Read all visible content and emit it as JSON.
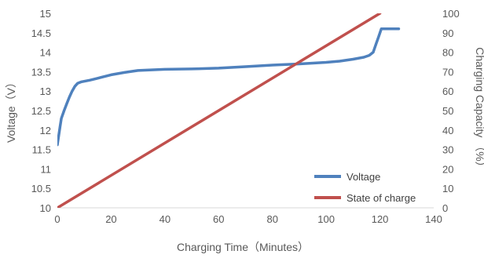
{
  "chart_data": {
    "type": "line",
    "title": "",
    "xlabel": "Charging Time（Minutes）",
    "ylabel_left": "Voltage（V）",
    "ylabel_right": "Charging Capacity （%）",
    "xlim": [
      0,
      140
    ],
    "ylim_left": [
      10,
      15
    ],
    "ylim_right": [
      0,
      100
    ],
    "x_ticks": [
      0,
      20,
      40,
      60,
      80,
      100,
      120,
      140
    ],
    "y_left_ticks": [
      10,
      10.5,
      11,
      11.5,
      12,
      12.5,
      13,
      13.5,
      14,
      14.5,
      15
    ],
    "y_left_tick_labels": [
      "10",
      "10.5",
      "11",
      "11.5",
      "12",
      "12.5",
      "13",
      "13.5",
      "14",
      "14.5",
      "15"
    ],
    "y_right_ticks": [
      0,
      10,
      20,
      30,
      40,
      50,
      60,
      70,
      80,
      90,
      100
    ],
    "grid": false,
    "legend_position": "bottom-right",
    "series": [
      {
        "name": "Voltage",
        "axis": "left",
        "color": "#4F81BD",
        "points": [
          [
            0,
            11.62
          ],
          [
            0.5,
            11.85
          ],
          [
            1,
            12.08
          ],
          [
            1.5,
            12.3
          ],
          [
            2.5,
            12.5
          ],
          [
            3.5,
            12.68
          ],
          [
            4.5,
            12.85
          ],
          [
            5.5,
            13.0
          ],
          [
            6.5,
            13.12
          ],
          [
            7.5,
            13.2
          ],
          [
            9,
            13.24
          ],
          [
            12,
            13.28
          ],
          [
            15,
            13.33
          ],
          [
            20,
            13.42
          ],
          [
            25,
            13.48
          ],
          [
            30,
            13.53
          ],
          [
            40,
            13.56
          ],
          [
            50,
            13.57
          ],
          [
            60,
            13.59
          ],
          [
            70,
            13.63
          ],
          [
            80,
            13.67
          ],
          [
            90,
            13.7
          ],
          [
            100,
            13.74
          ],
          [
            105,
            13.77
          ],
          [
            110,
            13.82
          ],
          [
            114,
            13.87
          ],
          [
            116,
            13.92
          ],
          [
            117.5,
            14.0
          ],
          [
            118.5,
            14.2
          ],
          [
            119.5,
            14.4
          ],
          [
            120.5,
            14.6
          ],
          [
            124,
            14.6
          ],
          [
            127,
            14.6
          ]
        ]
      },
      {
        "name": "State of charge",
        "axis": "right",
        "color": "#C0504D",
        "points": [
          [
            0,
            0
          ],
          [
            120,
            100
          ]
        ]
      }
    ]
  }
}
